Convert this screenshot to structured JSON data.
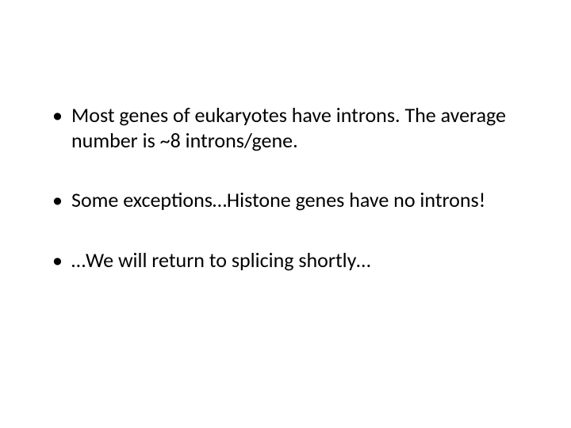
{
  "slide": {
    "background_color": "#ffffff",
    "text_color": "#000000",
    "font_family": "Calibri",
    "font_size_pt": 26,
    "bullets": [
      {
        "text": "Most genes of eukaryotes have introns.  The average number is ~8 introns/gene."
      },
      {
        "text": "Some exceptions…Histone genes have no introns!"
      },
      {
        "text": "…We will return to splicing shortly…"
      }
    ]
  }
}
